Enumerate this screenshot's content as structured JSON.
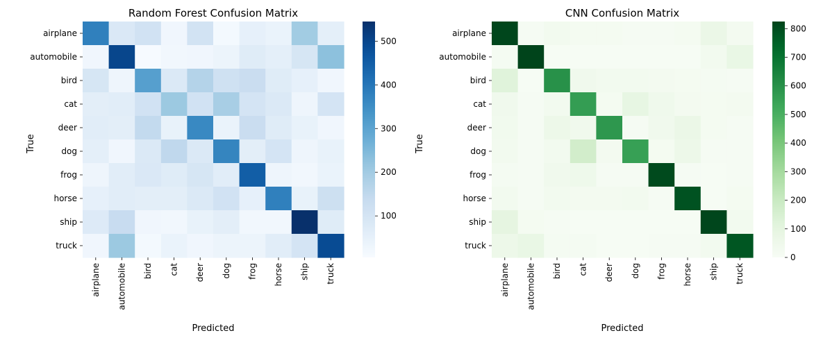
{
  "chart_data": [
    {
      "type": "heatmap",
      "title": "Random Forest Confusion Matrix",
      "xlabel": "Predicted",
      "ylabel": "True",
      "x_categories": [
        "airplane",
        "automobile",
        "bird",
        "cat",
        "deer",
        "dog",
        "frog",
        "horse",
        "ship",
        "truck"
      ],
      "y_categories": [
        "airplane",
        "automobile",
        "bird",
        "cat",
        "deer",
        "dog",
        "frog",
        "horse",
        "ship",
        "truck"
      ],
      "colormap": "Blues",
      "color_range": [
        5,
        545
      ],
      "colorbar_ticks": [
        100,
        200,
        300,
        400,
        500
      ],
      "values": [
        [
          380,
          85,
          110,
          25,
          105,
          15,
          50,
          40,
          200,
          55
        ],
        [
          25,
          500,
          8,
          20,
          25,
          35,
          70,
          55,
          95,
          230
        ],
        [
          95,
          30,
          310,
          80,
          170,
          115,
          130,
          70,
          50,
          25
        ],
        [
          60,
          65,
          110,
          210,
          110,
          190,
          100,
          80,
          30,
          100
        ],
        [
          65,
          60,
          145,
          45,
          360,
          40,
          130,
          70,
          45,
          25
        ],
        [
          55,
          25,
          80,
          150,
          80,
          370,
          60,
          100,
          30,
          45
        ],
        [
          30,
          65,
          85,
          70,
          95,
          65,
          450,
          30,
          20,
          40
        ],
        [
          50,
          65,
          60,
          60,
          80,
          110,
          50,
          380,
          45,
          120
        ],
        [
          75,
          135,
          25,
          20,
          45,
          60,
          20,
          20,
          545,
          70
        ],
        [
          25,
          210,
          15,
          40,
          25,
          35,
          35,
          65,
          100,
          490
        ]
      ]
    },
    {
      "type": "heatmap",
      "title": "CNN Confusion Matrix",
      "xlabel": "Predicted",
      "ylabel": "True",
      "x_categories": [
        "airplane",
        "automobile",
        "bird",
        "cat",
        "deer",
        "dog",
        "frog",
        "horse",
        "ship",
        "truck"
      ],
      "y_categories": [
        "airplane",
        "automobile",
        "bird",
        "cat",
        "deer",
        "dog",
        "frog",
        "horse",
        "ship",
        "truck"
      ],
      "colormap": "Greens",
      "color_range": [
        0,
        825
      ],
      "colorbar_ticks": [
        0,
        100,
        200,
        300,
        400,
        500,
        600,
        700,
        800
      ],
      "values": [
        [
          820,
          10,
          30,
          20,
          18,
          10,
          10,
          20,
          70,
          25
        ],
        [
          15,
          825,
          5,
          5,
          5,
          5,
          5,
          5,
          30,
          80
        ],
        [
          120,
          5,
          600,
          40,
          30,
          30,
          25,
          20,
          15,
          10
        ],
        [
          40,
          10,
          30,
          560,
          20,
          90,
          45,
          25,
          20,
          25
        ],
        [
          35,
          10,
          60,
          40,
          580,
          10,
          40,
          70,
          20,
          10
        ],
        [
          30,
          10,
          30,
          170,
          25,
          550,
          20,
          60,
          10,
          10
        ],
        [
          15,
          10,
          40,
          50,
          10,
          10,
          810,
          10,
          5,
          10
        ],
        [
          30,
          10,
          30,
          25,
          25,
          30,
          10,
          790,
          5,
          20
        ],
        [
          100,
          20,
          10,
          5,
          5,
          5,
          5,
          5,
          820,
          30
        ],
        [
          60,
          80,
          15,
          15,
          5,
          5,
          10,
          10,
          30,
          780
        ]
      ]
    }
  ]
}
